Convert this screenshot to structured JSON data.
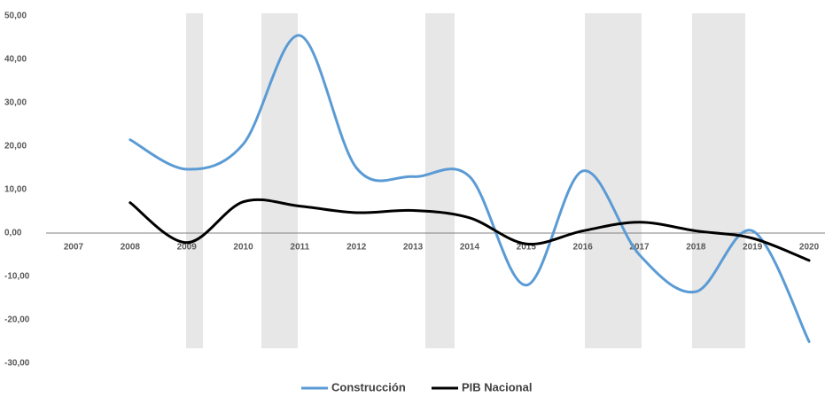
{
  "chart_data": {
    "type": "line",
    "categories": [
      "2007",
      "2008",
      "2009",
      "2010",
      "2011",
      "2012",
      "2013",
      "2014",
      "2015",
      "2016",
      "2017",
      "2018",
      "2019",
      "2020"
    ],
    "series": [
      {
        "name": "Construcción",
        "color": "#5b9bd5",
        "values": [
          null,
          21.5,
          14.7,
          20.5,
          45.5,
          15,
          13,
          13,
          -12,
          14.3,
          -5,
          -13.5,
          0.5,
          -25
        ]
      },
      {
        "name": "PIB Nacional",
        "color": "#000000",
        "values": [
          null,
          7,
          -2.2,
          7.2,
          6.2,
          4.7,
          5.2,
          3.5,
          -2.5,
          0.5,
          2.5,
          0.5,
          -1.2,
          -6.3
        ]
      }
    ],
    "ylim": [
      -30,
      50
    ],
    "yticks": [
      {
        "value": -30,
        "label": "-30,00"
      },
      {
        "value": -20,
        "label": "-20,00"
      },
      {
        "value": -10,
        "label": "-10,00"
      },
      {
        "value": 0,
        "label": "0,00"
      },
      {
        "value": 10,
        "label": "10,00"
      },
      {
        "value": 20,
        "label": "20,00"
      },
      {
        "value": 30,
        "label": "30,00"
      },
      {
        "value": 40,
        "label": "40,00"
      },
      {
        "value": 50,
        "label": "50,00"
      }
    ],
    "grid": false,
    "legend": "bottom"
  }
}
